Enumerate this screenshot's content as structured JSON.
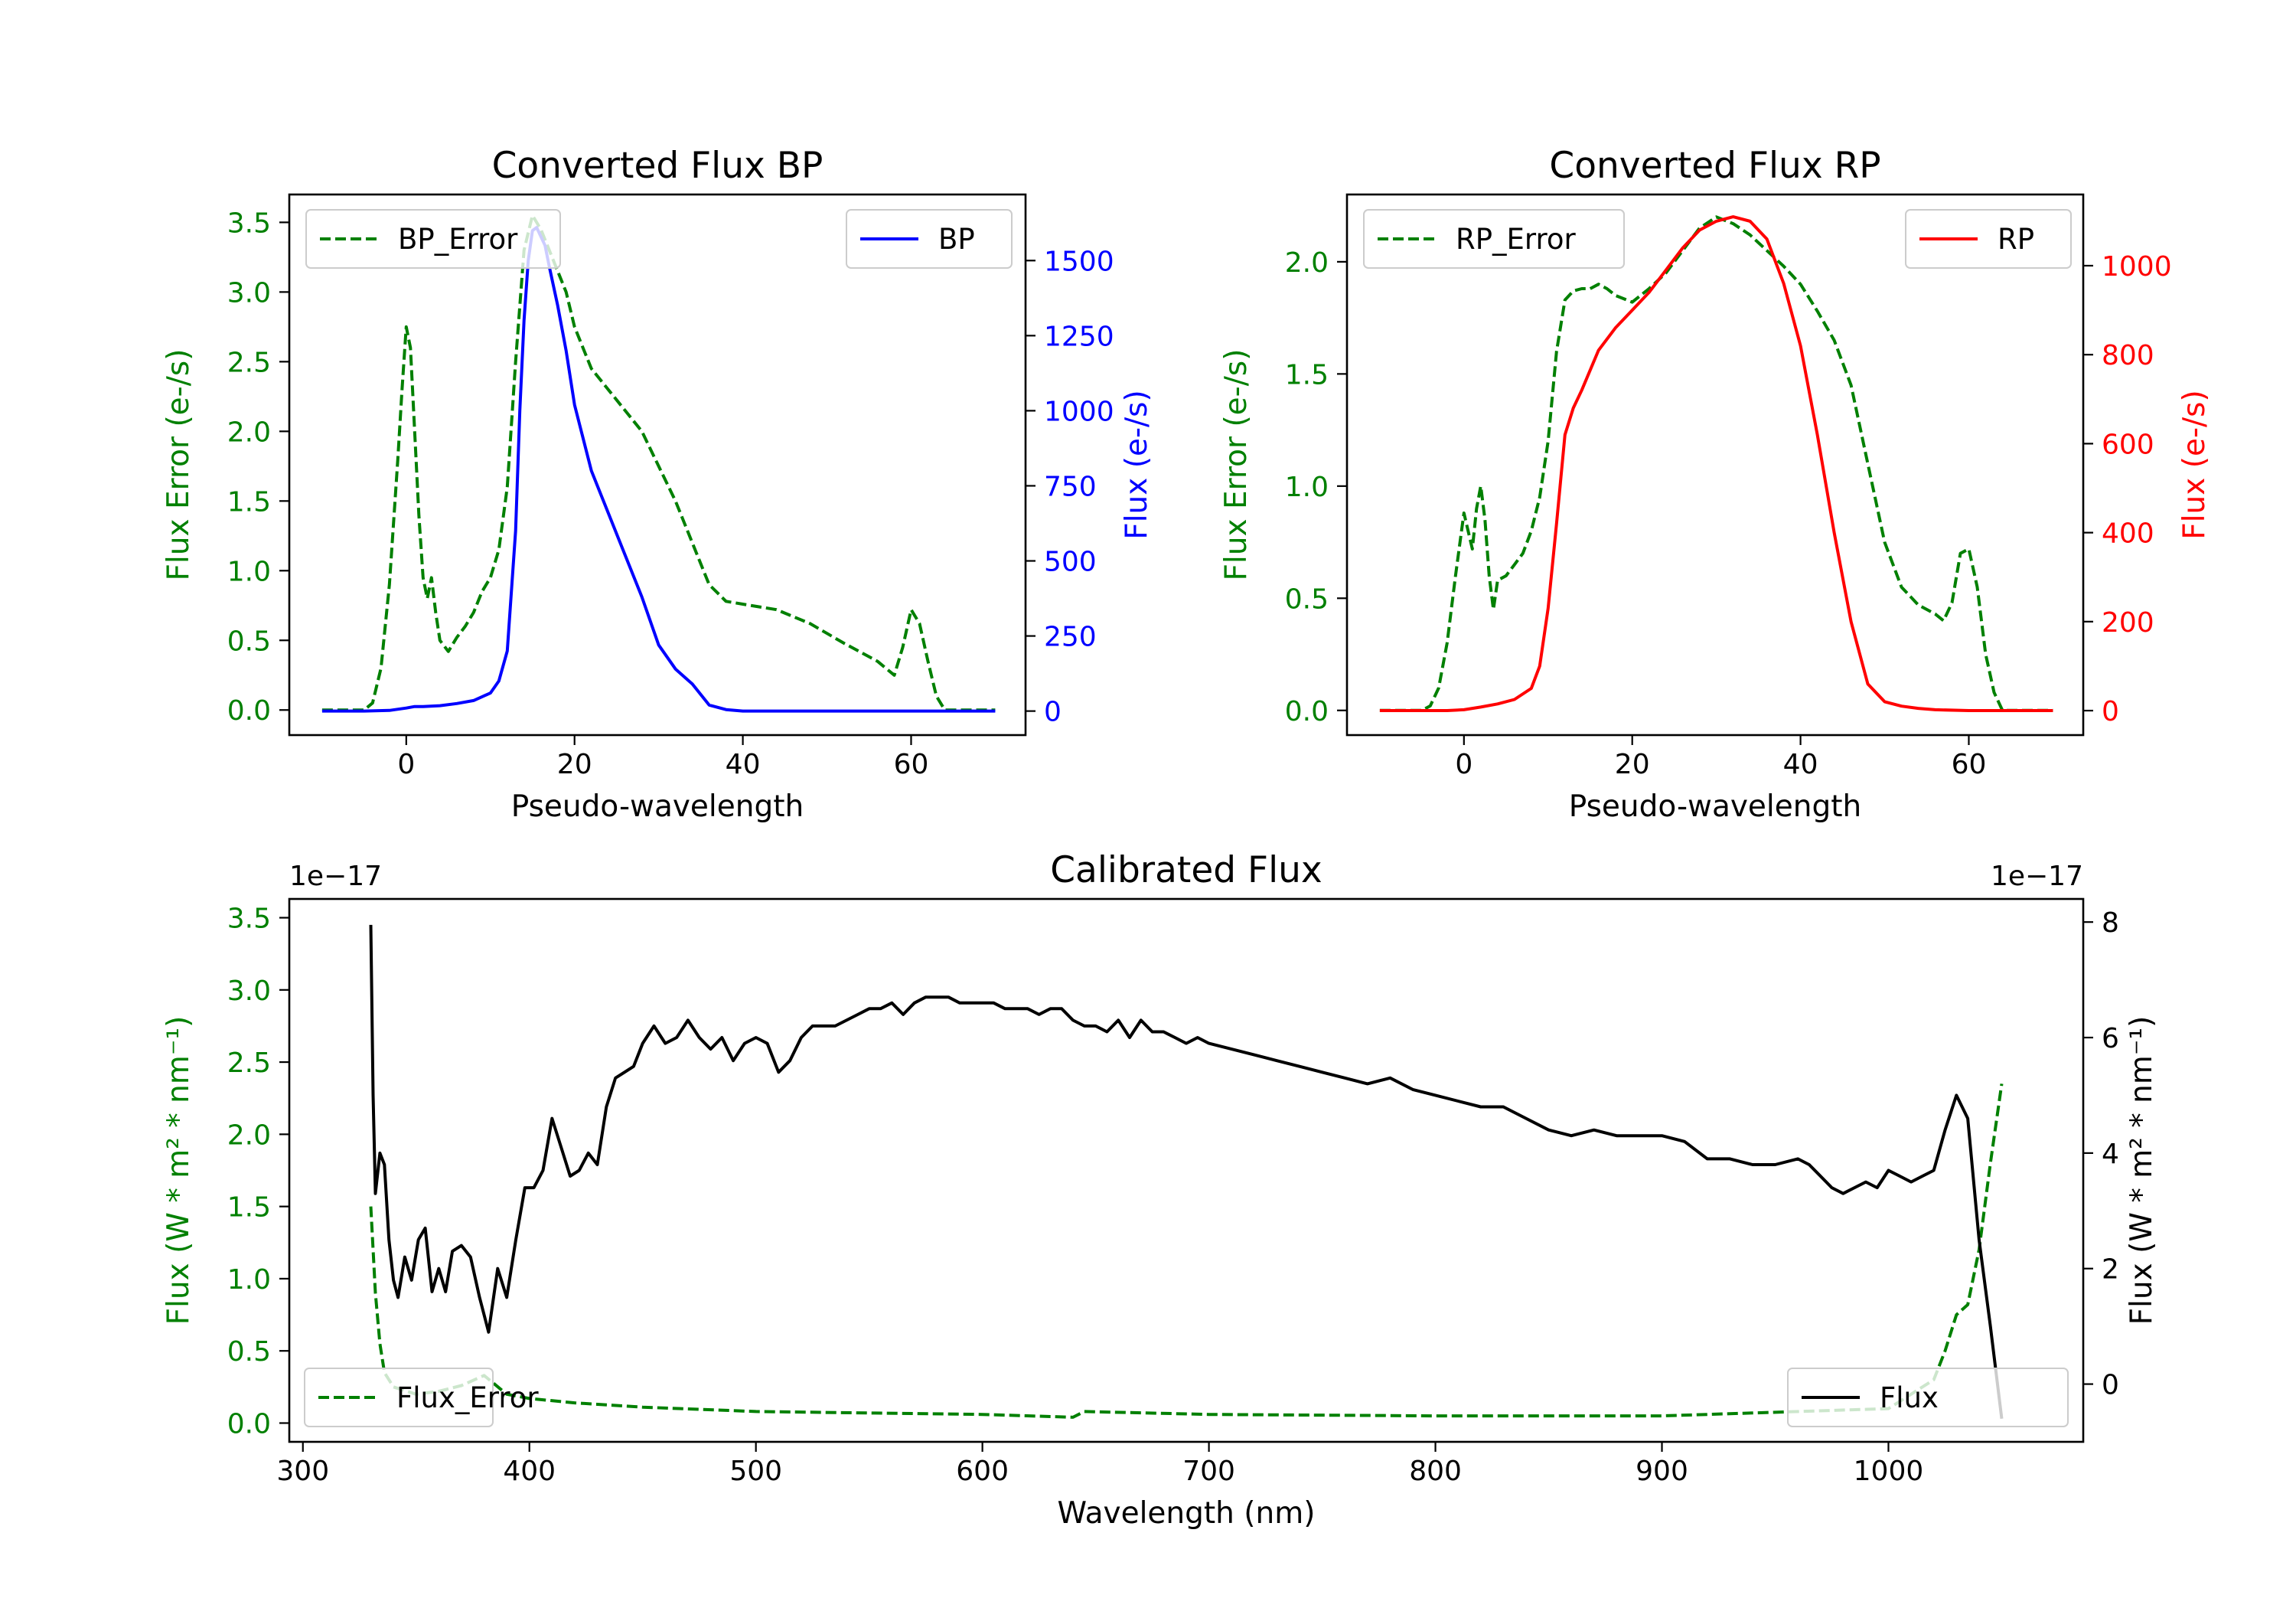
{
  "chart_data": [
    {
      "type": "line",
      "id": "bp",
      "title": "Converted Flux BP",
      "xlabel": "Pseudo-wavelength",
      "ylabel_left": "Flux Error (e-/s)",
      "ylabel_right": "Flux (e-/s)",
      "xlim": [
        -13.9,
        73.6
      ],
      "x_ticks": [
        "0",
        "20",
        "40",
        "60"
      ],
      "left_axis": {
        "color": "#008000",
        "ylim": [
          -0.18,
          3.7
        ],
        "ticks": [
          "0.0",
          "0.5",
          "1.0",
          "1.5",
          "2.0",
          "2.5",
          "3.0",
          "3.5"
        ]
      },
      "right_axis": {
        "color": "#0000ff",
        "ylim": [
          -80,
          1720
        ],
        "ticks": [
          "0",
          "250",
          "500",
          "750",
          "1000",
          "1250",
          "1500"
        ]
      },
      "legend_left": "top-left",
      "legend_right": "top-right",
      "series": [
        {
          "name": "BP_Error",
          "axis": "left",
          "color": "#008000",
          "style": "dashed",
          "x": [
            -10,
            -5,
            -4,
            -3,
            -2,
            -1,
            -0.5,
            0,
            0.5,
            1,
            1.5,
            2,
            2.5,
            3,
            3.5,
            4,
            5,
            6,
            7,
            8,
            9,
            10,
            11,
            12,
            13,
            14,
            15,
            16,
            17,
            18,
            19,
            20,
            22,
            24,
            26,
            28,
            30,
            32,
            34,
            36,
            38,
            40,
            44,
            48,
            52,
            56,
            58,
            59,
            60,
            61,
            62,
            63,
            64,
            70
          ],
          "values": [
            0,
            0,
            0.05,
            0.3,
            0.9,
            1.8,
            2.3,
            2.75,
            2.6,
            2.0,
            1.4,
            0.95,
            0.8,
            0.95,
            0.7,
            0.5,
            0.42,
            0.52,
            0.6,
            0.7,
            0.85,
            0.95,
            1.15,
            1.6,
            2.5,
            3.3,
            3.55,
            3.45,
            3.3,
            3.15,
            3.0,
            2.75,
            2.45,
            2.3,
            2.15,
            2.0,
            1.75,
            1.5,
            1.2,
            0.9,
            0.78,
            0.76,
            0.72,
            0.62,
            0.48,
            0.35,
            0.25,
            0.45,
            0.72,
            0.62,
            0.35,
            0.1,
            0,
            0
          ]
        },
        {
          "name": "BP",
          "axis": "right",
          "color": "#0000ff",
          "style": "solid",
          "x": [
            -10,
            -5,
            -2,
            0,
            1,
            2,
            4,
            6,
            8,
            10,
            11,
            12,
            13,
            13.5,
            14,
            14.5,
            15,
            15.5,
            16,
            16.5,
            17,
            18,
            19,
            20,
            22,
            24,
            26,
            28,
            30,
            32,
            34,
            36,
            38,
            40,
            44,
            50,
            56,
            58,
            60,
            62,
            70
          ],
          "values": [
            0,
            0,
            2,
            10,
            15,
            15,
            18,
            25,
            35,
            60,
            100,
            200,
            600,
            1000,
            1300,
            1500,
            1600,
            1610,
            1580,
            1550,
            1480,
            1350,
            1200,
            1020,
            800,
            660,
            520,
            380,
            220,
            140,
            90,
            20,
            5,
            0,
            0,
            0,
            0,
            0,
            0,
            0,
            0
          ]
        }
      ]
    },
    {
      "type": "line",
      "id": "rp",
      "title": "Converted Flux RP",
      "xlabel": "Pseudo-wavelength",
      "ylabel_left": "Flux Error (e-/s)",
      "ylabel_right": "Flux (e-/s)",
      "xlim": [
        -13.9,
        73.6
      ],
      "x_ticks": [
        "0",
        "20",
        "40",
        "60"
      ],
      "left_axis": {
        "color": "#008000",
        "ylim": [
          -0.11,
          2.3
        ],
        "ticks": [
          "0.0",
          "0.5",
          "1.0",
          "1.5",
          "2.0"
        ]
      },
      "right_axis": {
        "color": "#ff0000",
        "ylim": [
          -55,
          1160
        ],
        "ticks": [
          "0",
          "200",
          "400",
          "600",
          "800",
          "1000"
        ]
      },
      "legend_left": "top-left",
      "legend_right": "top-right",
      "series": [
        {
          "name": "RP_Error",
          "axis": "left",
          "color": "#008000",
          "style": "dashed",
          "x": [
            -10,
            -5,
            -4,
            -3,
            -2,
            -1,
            0,
            0.5,
            1,
            1.5,
            2,
            2.5,
            3,
            3.5,
            4,
            5,
            6,
            7,
            8,
            9,
            10,
            11,
            12,
            13,
            14,
            15,
            16,
            17,
            18,
            20,
            22,
            24,
            26,
            28,
            30,
            32,
            34,
            36,
            38,
            40,
            42,
            44,
            46,
            48,
            50,
            52,
            54,
            56,
            57,
            58,
            59,
            60,
            61,
            62,
            63,
            64,
            70
          ],
          "values": [
            0,
            0,
            0.02,
            0.1,
            0.3,
            0.6,
            0.88,
            0.8,
            0.72,
            0.9,
            1.0,
            0.85,
            0.6,
            0.45,
            0.58,
            0.6,
            0.65,
            0.7,
            0.8,
            0.95,
            1.2,
            1.6,
            1.83,
            1.87,
            1.88,
            1.88,
            1.9,
            1.88,
            1.85,
            1.82,
            1.88,
            1.95,
            2.05,
            2.15,
            2.2,
            2.17,
            2.12,
            2.05,
            1.98,
            1.9,
            1.78,
            1.65,
            1.45,
            1.1,
            0.75,
            0.55,
            0.47,
            0.43,
            0.4,
            0.48,
            0.7,
            0.72,
            0.55,
            0.25,
            0.08,
            0,
            0
          ]
        },
        {
          "name": "RP",
          "axis": "right",
          "color": "#ff0000",
          "style": "solid",
          "x": [
            -10,
            -4,
            -2,
            0,
            2,
            4,
            6,
            8,
            9,
            10,
            11,
            12,
            13,
            14,
            16,
            18,
            20,
            22,
            24,
            26,
            28,
            30,
            32,
            34,
            36,
            38,
            40,
            42,
            44,
            46,
            48,
            50,
            52,
            54,
            56,
            60,
            64,
            70
          ],
          "values": [
            0,
            0,
            0,
            2,
            8,
            15,
            25,
            50,
            100,
            230,
            420,
            620,
            680,
            720,
            810,
            860,
            900,
            940,
            990,
            1040,
            1080,
            1100,
            1110,
            1100,
            1060,
            960,
            820,
            620,
            400,
            200,
            60,
            20,
            10,
            5,
            2,
            0,
            0,
            0
          ]
        }
      ]
    },
    {
      "type": "line",
      "id": "cal",
      "title": "Calibrated Flux",
      "xlabel": "Wavelength (nm)",
      "ylabel_left": "Flux (W * m² * nm⁻¹)",
      "ylabel_right": "Flux (W * m² * nm⁻¹)",
      "offset_left": "1e−17",
      "offset_right": "1e−17",
      "xlim": [
        294,
        1086
      ],
      "x_ticks": [
        "300",
        "400",
        "500",
        "600",
        "700",
        "800",
        "900",
        "1000"
      ],
      "left_axis": {
        "color": "#008000",
        "ylim": [
          -0.13,
          3.63
        ],
        "ticks": [
          "0.0",
          "0.5",
          "1.0",
          "1.5",
          "2.0",
          "2.5",
          "3.0",
          "3.5"
        ]
      },
      "right_axis": {
        "color": "#000000",
        "ylim": [
          -1.0,
          8.4
        ],
        "ticks": [
          "0",
          "2",
          "4",
          "6",
          "8"
        ]
      },
      "legend_left": "bottom-left",
      "legend_right": "bottom-right",
      "series": [
        {
          "name": "Flux_Error",
          "axis": "left",
          "color": "#008000",
          "style": "dashed",
          "x": [
            330,
            332,
            334,
            336,
            340,
            350,
            360,
            370,
            380,
            390,
            400,
            420,
            450,
            500,
            600,
            640,
            645,
            700,
            800,
            900,
            1000,
            1020,
            1025,
            1030,
            1035,
            1040,
            1045,
            1050
          ],
          "values": [
            1.5,
            0.9,
            0.55,
            0.35,
            0.25,
            0.2,
            0.22,
            0.26,
            0.33,
            0.2,
            0.17,
            0.14,
            0.11,
            0.08,
            0.06,
            0.04,
            0.08,
            0.06,
            0.05,
            0.05,
            0.1,
            0.3,
            0.5,
            0.75,
            0.82,
            1.2,
            1.8,
            2.35
          ]
        },
        {
          "name": "Flux",
          "axis": "right",
          "color": "#000000",
          "style": "solid",
          "x": [
            330,
            331,
            332,
            334,
            336,
            338,
            340,
            342,
            345,
            348,
            351,
            354,
            357,
            360,
            363,
            366,
            370,
            374,
            378,
            382,
            386,
            390,
            394,
            398,
            402,
            406,
            410,
            414,
            418,
            422,
            426,
            430,
            434,
            438,
            442,
            446,
            450,
            455,
            460,
            465,
            470,
            475,
            480,
            485,
            490,
            495,
            500,
            505,
            510,
            515,
            520,
            525,
            530,
            535,
            540,
            545,
            550,
            555,
            560,
            565,
            570,
            575,
            580,
            585,
            590,
            595,
            600,
            605,
            610,
            615,
            620,
            625,
            630,
            635,
            640,
            645,
            650,
            655,
            660,
            665,
            670,
            675,
            680,
            685,
            690,
            695,
            700,
            710,
            720,
            730,
            740,
            750,
            760,
            770,
            780,
            790,
            800,
            810,
            820,
            830,
            840,
            850,
            860,
            870,
            880,
            890,
            900,
            910,
            920,
            930,
            940,
            950,
            960,
            965,
            970,
            975,
            980,
            985,
            990,
            995,
            1000,
            1005,
            1010,
            1015,
            1020,
            1025,
            1030,
            1035,
            1040,
            1045,
            1050
          ],
          "values": [
            7.95,
            5.0,
            3.3,
            4.0,
            3.8,
            2.5,
            1.8,
            1.5,
            2.2,
            1.8,
            2.5,
            2.7,
            1.6,
            2.0,
            1.6,
            2.3,
            2.4,
            2.2,
            1.5,
            0.9,
            2.0,
            1.5,
            2.5,
            3.4,
            3.4,
            3.7,
            4.6,
            4.1,
            3.6,
            3.7,
            4.0,
            3.8,
            4.8,
            5.3,
            5.4,
            5.5,
            5.9,
            6.2,
            5.9,
            6.0,
            6.3,
            6.0,
            5.8,
            6.0,
            5.6,
            5.9,
            6.0,
            5.9,
            5.4,
            5.6,
            6.0,
            6.2,
            6.2,
            6.2,
            6.3,
            6.4,
            6.5,
            6.5,
            6.6,
            6.4,
            6.6,
            6.7,
            6.7,
            6.7,
            6.6,
            6.6,
            6.6,
            6.6,
            6.5,
            6.5,
            6.5,
            6.4,
            6.5,
            6.5,
            6.3,
            6.2,
            6.2,
            6.1,
            6.3,
            6.0,
            6.3,
            6.1,
            6.1,
            6.0,
            5.9,
            6.0,
            5.9,
            5.8,
            5.7,
            5.6,
            5.5,
            5.4,
            5.3,
            5.2,
            5.3,
            5.1,
            5.0,
            4.9,
            4.8,
            4.8,
            4.6,
            4.4,
            4.3,
            4.4,
            4.3,
            4.3,
            4.3,
            4.2,
            3.9,
            3.9,
            3.8,
            3.8,
            3.9,
            3.8,
            3.6,
            3.4,
            3.3,
            3.4,
            3.5,
            3.4,
            3.7,
            3.6,
            3.5,
            3.6,
            3.7,
            4.4,
            5.0,
            4.6,
            2.5,
            1.0,
            -0.6
          ]
        }
      ]
    }
  ]
}
